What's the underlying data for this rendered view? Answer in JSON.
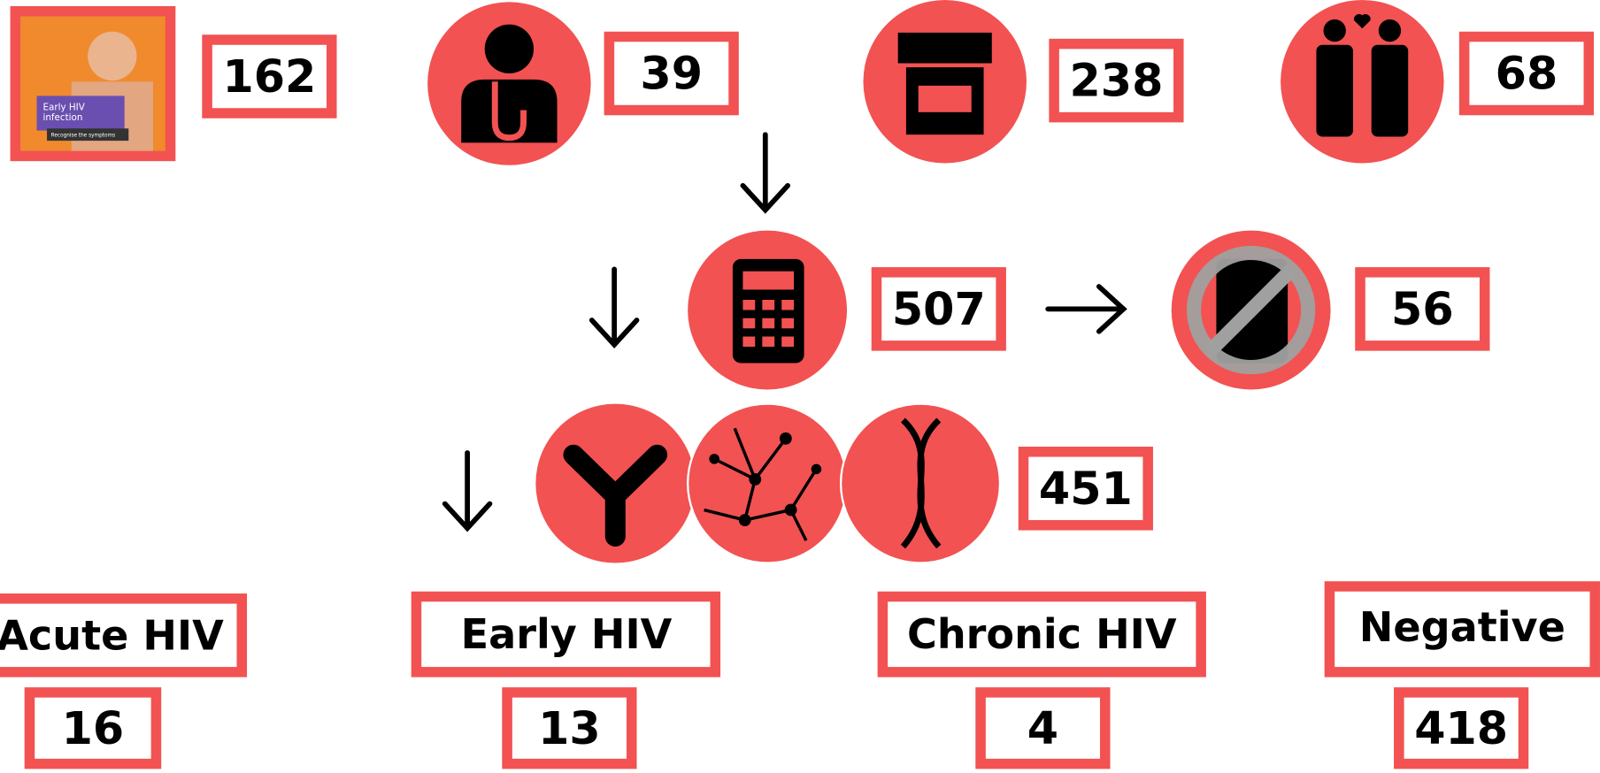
{
  "photo": {
    "title": "Early HIV infection",
    "caption": "Recognise the symptoms",
    "count": 162
  },
  "top_row": [
    {
      "count": 39
    },
    {
      "count": 238
    },
    {
      "count": 68
    }
  ],
  "tested": {
    "count": 507
  },
  "not_tested": {
    "count": 56
  },
  "lab_tests": {
    "count": 451
  },
  "outcomes": [
    {
      "label": "Acute HIV",
      "count": 16
    },
    {
      "label": "Early HIV",
      "count": 13
    },
    {
      "label": "Chronic HIV",
      "count": 4
    },
    {
      "label": "Negative",
      "count": 418
    }
  ]
}
